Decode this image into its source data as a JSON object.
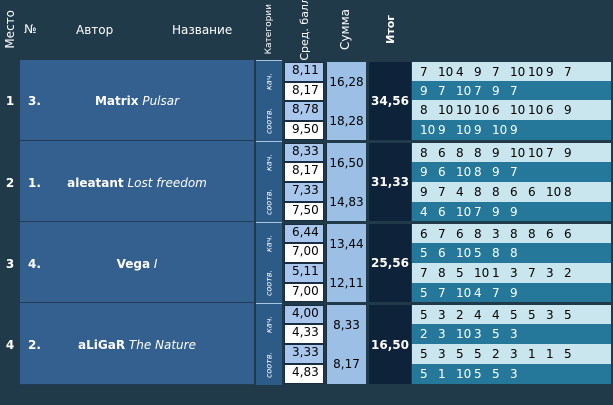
{
  "headers": {
    "place": "Место",
    "number": "№",
    "author": "Автор",
    "title": "Название",
    "category": "Категории",
    "avg": "Сред. балл",
    "sum": "Сумма",
    "total": "Итог"
  },
  "rows": [
    {
      "place": "1",
      "number": "3.",
      "author": "Matrix",
      "title": "Pulsar",
      "cat1": "кач.",
      "cat2": "соотв.",
      "avg1": "8,11",
      "avg2": "8,17",
      "avg3": "8,78",
      "avg4": "9,50",
      "sum1": "16,28",
      "sum2": "18,28",
      "total": "34,56",
      "s1": [
        "7",
        "10",
        "4",
        "9",
        "7",
        "10",
        "10",
        "9",
        "7"
      ],
      "s2": [
        "9",
        "7",
        "10",
        "7",
        "9",
        "7"
      ],
      "s3": [
        "8",
        "10",
        "10",
        "10",
        "6",
        "10",
        "10",
        "6",
        "9"
      ],
      "s4": [
        "10",
        "9",
        "10",
        "9",
        "10",
        "9"
      ]
    },
    {
      "place": "2",
      "number": "1.",
      "author": "aleatant",
      "title": "Lost freedom",
      "cat1": "кач.",
      "cat2": "соотв.",
      "avg1": "8,33",
      "avg2": "8,17",
      "avg3": "7,33",
      "avg4": "7,50",
      "sum1": "16,50",
      "sum2": "14,83",
      "total": "31,33",
      "s1": [
        "8",
        "6",
        "8",
        "8",
        "9",
        "10",
        "10",
        "7",
        "9"
      ],
      "s2": [
        "9",
        "6",
        "10",
        "8",
        "9",
        "7"
      ],
      "s3": [
        "9",
        "7",
        "4",
        "8",
        "8",
        "6",
        "6",
        "10",
        "8"
      ],
      "s4": [
        "4",
        "6",
        "10",
        "7",
        "9",
        "9"
      ]
    },
    {
      "place": "3",
      "number": "4.",
      "author": "Vega",
      "title": "I",
      "cat1": "кач.",
      "cat2": "соотв.",
      "avg1": "6,44",
      "avg2": "7,00",
      "avg3": "5,11",
      "avg4": "7,00",
      "sum1": "13,44",
      "sum2": "12,11",
      "total": "25,56",
      "s1": [
        "6",
        "7",
        "6",
        "8",
        "3",
        "8",
        "8",
        "6",
        "6"
      ],
      "s2": [
        "5",
        "6",
        "10",
        "5",
        "8",
        "8"
      ],
      "s3": [
        "7",
        "8",
        "5",
        "10",
        "1",
        "3",
        "7",
        "3",
        "2"
      ],
      "s4": [
        "5",
        "7",
        "10",
        "4",
        "7",
        "9"
      ]
    },
    {
      "place": "4",
      "number": "2.",
      "author": "aLiGaR",
      "title": "The Nature",
      "cat1": "кач.",
      "cat2": "соотв.",
      "avg1": "4,00",
      "avg2": "4,33",
      "avg3": "3,33",
      "avg4": "4,83",
      "sum1": "8,33",
      "sum2": "8,17",
      "total": "16,50",
      "s1": [
        "5",
        "3",
        "2",
        "4",
        "4",
        "5",
        "5",
        "3",
        "5"
      ],
      "s2": [
        "2",
        "3",
        "10",
        "3",
        "5",
        "3"
      ],
      "s3": [
        "5",
        "3",
        "5",
        "5",
        "2",
        "3",
        "1",
        "1",
        "5"
      ],
      "s4": [
        "5",
        "1",
        "10",
        "5",
        "5",
        "3"
      ]
    }
  ]
}
